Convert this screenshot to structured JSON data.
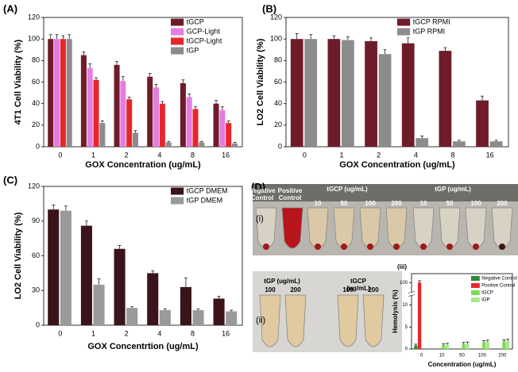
{
  "chart_data": [
    {
      "type": "bar",
      "panel": "(A)",
      "xlabel": "GOX Concentration (ug/mL)",
      "ylabel": "4T1 Cell Viability (%)",
      "categories": [
        "0",
        "1",
        "2",
        "4",
        "8",
        "16"
      ],
      "ylim": [
        0,
        120
      ],
      "yticks": [
        0,
        20,
        40,
        60,
        80,
        100,
        120
      ],
      "legend": "upper right",
      "series": [
        {
          "name": "tGCP",
          "color": "#6e1c2a",
          "values": [
            100,
            85,
            76,
            65,
            59,
            40
          ],
          "errors": [
            4,
            3,
            3,
            3,
            3,
            3
          ]
        },
        {
          "name": "GCP-Light",
          "color": "#e37ee0",
          "values": [
            100,
            73,
            61,
            55,
            46,
            34
          ],
          "errors": [
            4,
            4,
            4,
            3,
            3,
            3
          ]
        },
        {
          "name": "tGCP-Light",
          "color": "#e8262a",
          "values": [
            100,
            62,
            44,
            40,
            35,
            22
          ],
          "errors": [
            3,
            2,
            2,
            2,
            2,
            2
          ]
        },
        {
          "name": "tGP",
          "color": "#8c8c8c",
          "values": [
            100,
            22,
            13,
            4,
            4,
            3
          ],
          "errors": [
            4,
            2,
            2,
            1,
            1,
            1
          ]
        }
      ]
    },
    {
      "type": "bar",
      "panel": "(B)",
      "xlabel": "GOX Concentration (ug/mL)",
      "ylabel": "LO2 Cell Viability (%)",
      "categories": [
        "0",
        "1",
        "2",
        "4",
        "8",
        "16"
      ],
      "ylim": [
        0,
        120
      ],
      "yticks": [
        0,
        20,
        40,
        60,
        80,
        100,
        120
      ],
      "legend": "upper right",
      "series": [
        {
          "name": "tGCP  RPMI",
          "color": "#6e1c2a",
          "values": [
            100,
            100,
            98,
            96,
            89,
            43
          ],
          "errors": [
            5,
            3,
            3,
            5,
            3,
            4
          ]
        },
        {
          "name": "tGP  RPMI",
          "color": "#8c8c8c",
          "values": [
            100,
            99,
            86,
            8,
            5,
            5
          ],
          "errors": [
            4,
            3,
            4,
            2,
            1,
            1
          ]
        }
      ]
    },
    {
      "type": "bar",
      "panel": "(C)",
      "xlabel": "GOX Concentrtion (ug/mL)",
      "ylabel": "LO2 Cell Viability (%)",
      "categories": [
        "0",
        "1",
        "2",
        "4",
        "8",
        "16"
      ],
      "ylim": [
        0,
        120
      ],
      "yticks": [
        0,
        30,
        60,
        90,
        120
      ],
      "legend": "upper right",
      "series": [
        {
          "name": "tGCP  DMEM",
          "color": "#3a1419",
          "values": [
            100,
            86,
            66,
            45,
            33,
            23
          ],
          "errors": [
            4,
            4,
            3,
            2,
            8,
            2
          ]
        },
        {
          "name": "tGP  DMEM",
          "color": "#9a9a9a",
          "values": [
            99,
            35,
            15,
            13,
            13,
            12
          ],
          "errors": [
            4,
            5,
            1,
            1,
            1,
            1
          ]
        }
      ]
    },
    {
      "type": "bar",
      "panel": "(iii)",
      "xlabel": "Concentration (ug/mL)",
      "ylabel": "Hemolysis (%)",
      "categories": [
        "0",
        "10",
        "50",
        "100",
        "200"
      ],
      "ylim": [
        0,
        110
      ],
      "ybreak": [
        12,
        90
      ],
      "yticks": [
        0,
        5,
        10,
        100
      ],
      "legend": "upper right",
      "series": [
        {
          "name": "Negative Control",
          "color": "#2e8b3a",
          "values": [
            0.8,
            null,
            null,
            null,
            null
          ],
          "errors": [
            0.3,
            null,
            null,
            null,
            null
          ]
        },
        {
          "name": "Positive Control",
          "color": "#e8262a",
          "values": [
            100,
            null,
            null,
            null,
            null
          ],
          "errors": [
            2,
            null,
            null,
            null,
            null
          ]
        },
        {
          "name": "tGCP",
          "color": "#7ed957",
          "values": [
            null,
            0.9,
            1.1,
            1.5,
            1.7
          ],
          "errors": [
            null,
            0.3,
            0.4,
            0.4,
            0.4
          ]
        },
        {
          "name": "tGP",
          "color": "#a6e88a",
          "values": [
            null,
            1.0,
            1.2,
            1.6,
            1.8
          ],
          "errors": [
            null,
            0.3,
            0.4,
            0.4,
            0.4
          ]
        }
      ]
    }
  ],
  "photos": {
    "panel": "(D)",
    "label_i": "(i)",
    "label_ii": "(ii)",
    "top": {
      "negative": "Negative Control",
      "positive": "Positive Control",
      "tgcp": "tGCP (ug/mL)",
      "tgp": "tGP (ug/mL)",
      "tgcp_conc": [
        "10",
        "50",
        "100",
        "200"
      ],
      "tgp_conc": [
        "10",
        "50",
        "100",
        "200"
      ]
    },
    "bottom": {
      "tgp": "tGP (ug/mL)",
      "tgcp": "tGCP (ug/mL)",
      "tgp_conc": [
        "100",
        "200"
      ],
      "tgcp_conc": [
        "100",
        "200"
      ]
    }
  }
}
